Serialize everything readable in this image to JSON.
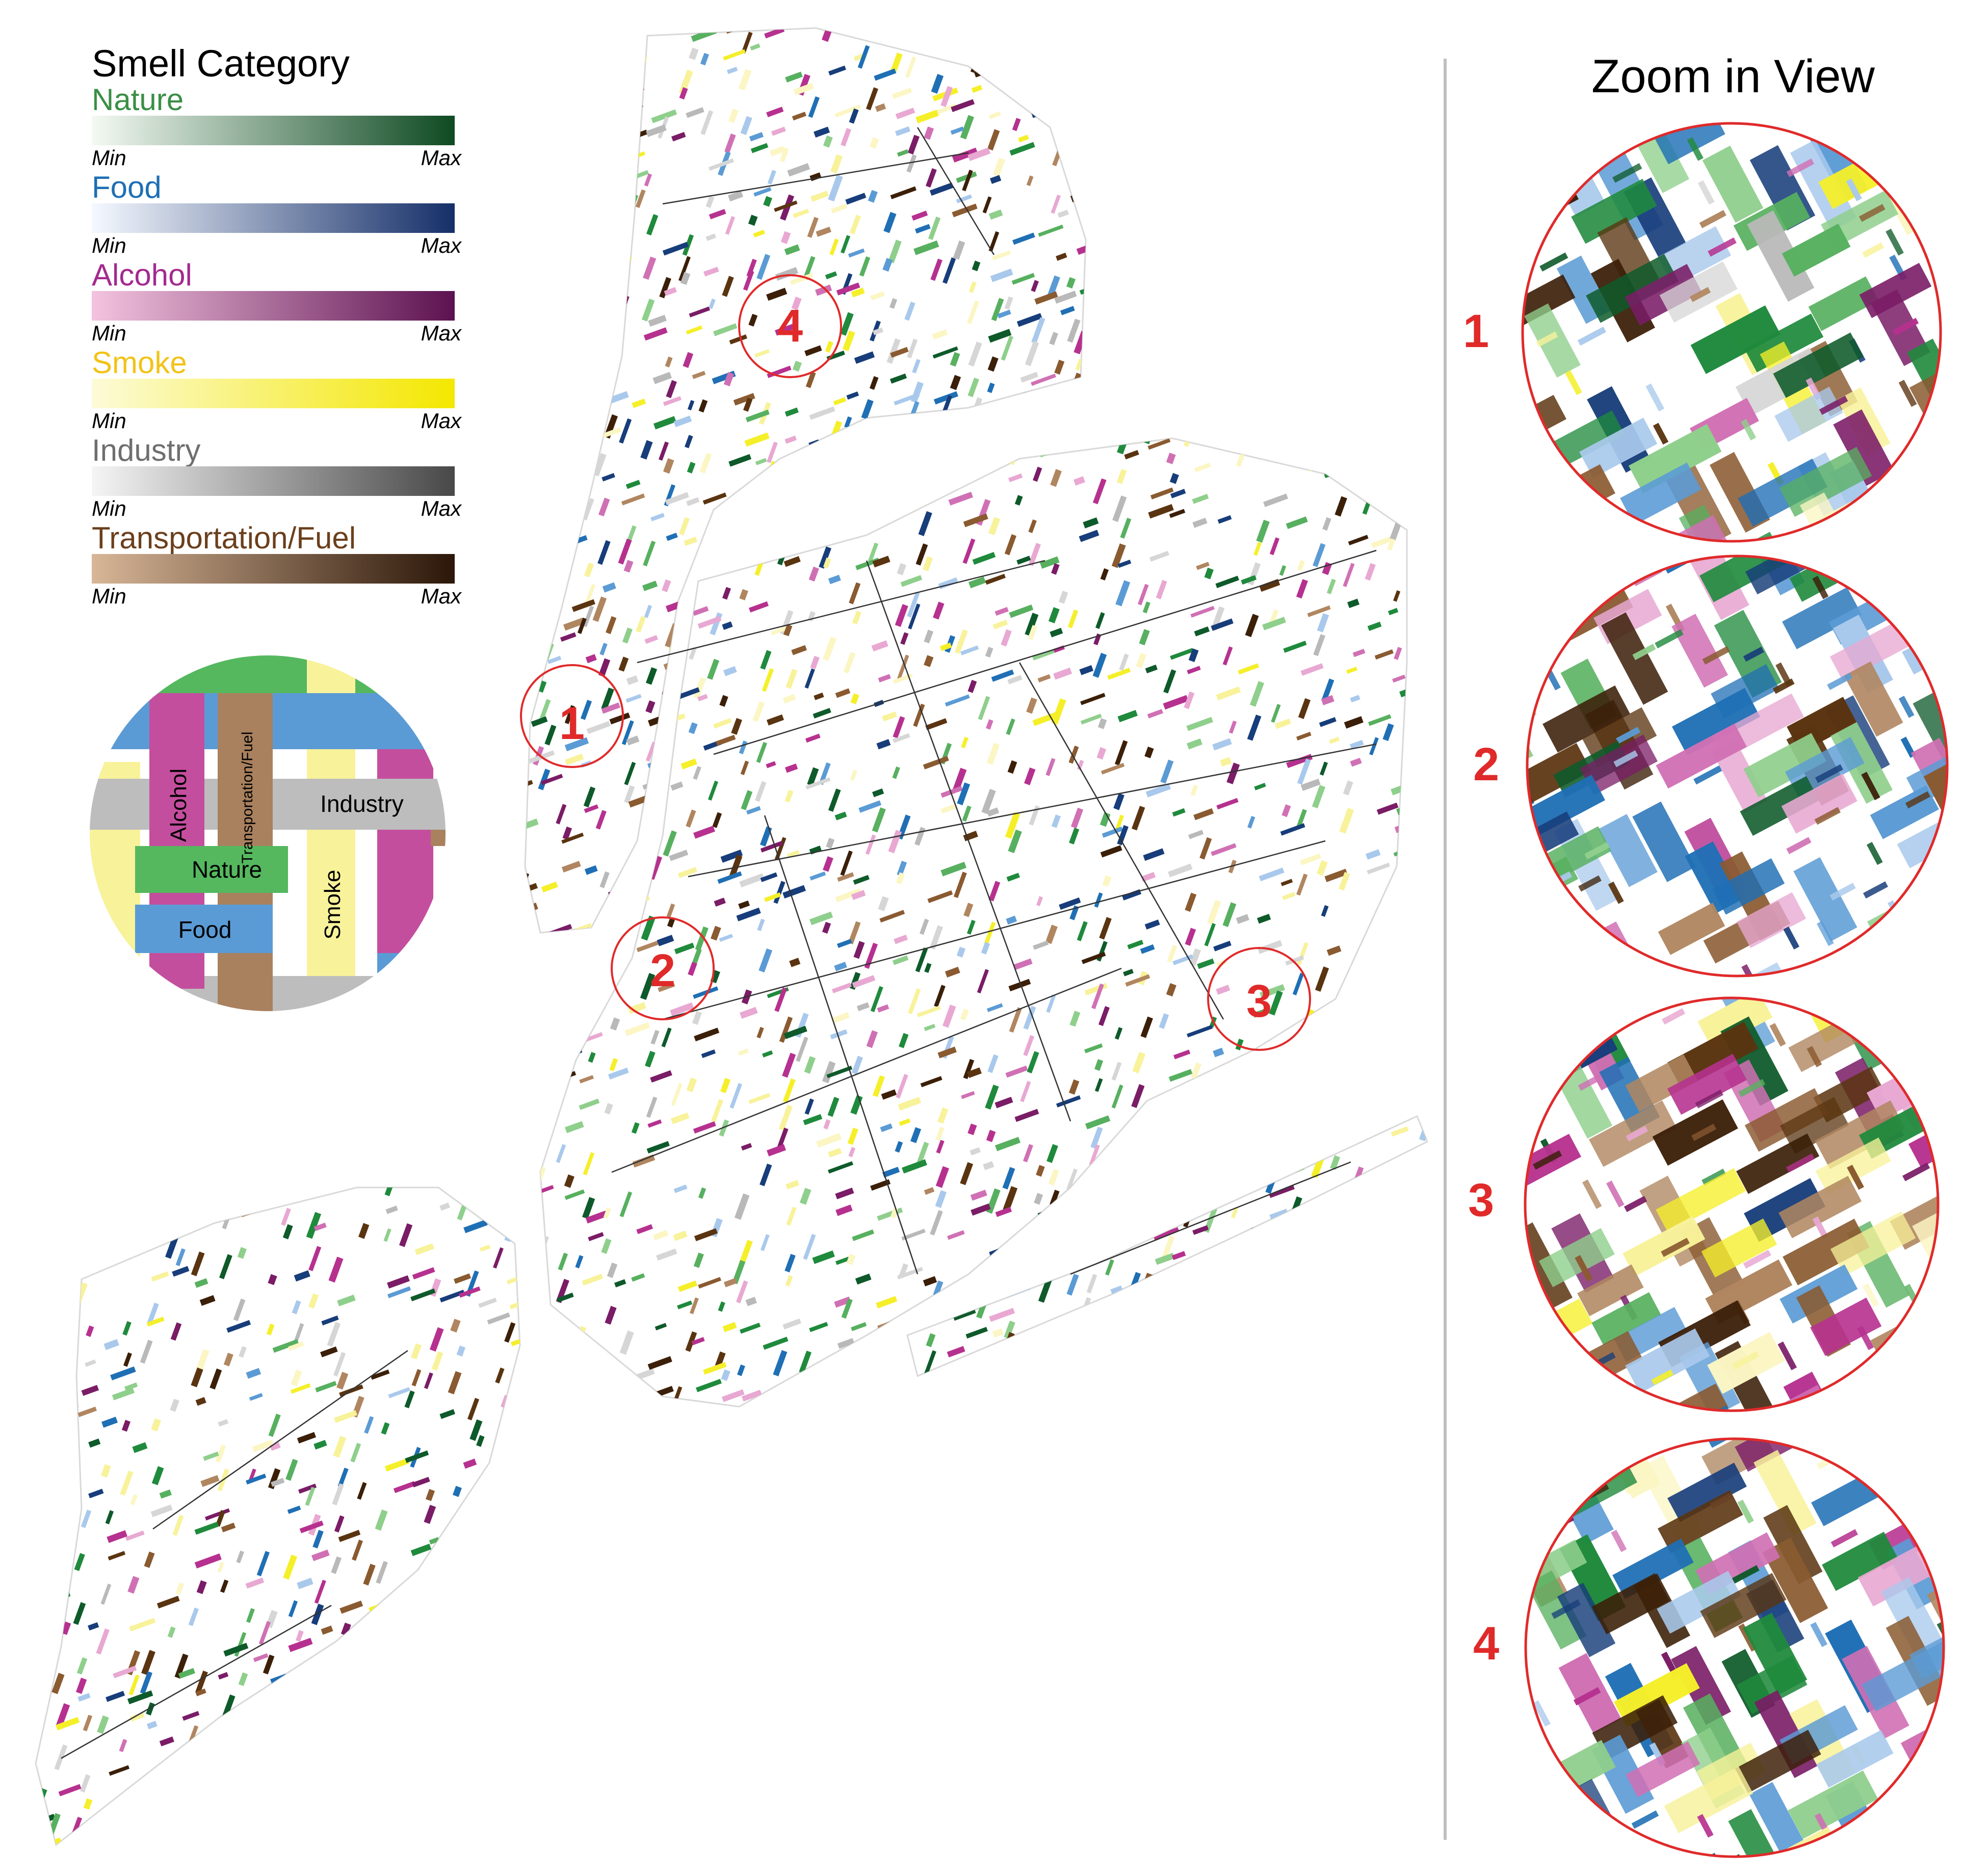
{
  "legend": {
    "title": "Smell Category",
    "categories": [
      {
        "name": "Nature",
        "label_color": "#3a8f45",
        "ramp": [
          "#f4faf3",
          "#0e4a22"
        ],
        "min": "Min",
        "max": "Max"
      },
      {
        "name": "Food",
        "label_color": "#1e6fb5",
        "ramp": [
          "#f5f9ff",
          "#152f68"
        ],
        "min": "Min",
        "max": "Max"
      },
      {
        "name": "Alcohol",
        "label_color": "#a3298f",
        "ramp": [
          "#f3c3df",
          "#5c1250"
        ],
        "min": "Min",
        "max": "Max"
      },
      {
        "name": "Smoke",
        "label_color": "#f2c318",
        "ramp": [
          "#fcfbd8",
          "#f4e700"
        ],
        "min": "Min",
        "max": "Max"
      },
      {
        "name": "Industry",
        "label_color": "#6e6e6e",
        "ramp": [
          "#f5f5f5",
          "#484848"
        ],
        "min": "Min",
        "max": "Max"
      },
      {
        "name": "Transportation/Fuel",
        "label_color": "#6b3f1c",
        "ramp": [
          "#d8b697",
          "#2b1608"
        ],
        "min": "Min",
        "max": "Max"
      }
    ]
  },
  "weave_key": {
    "labels": {
      "alcohol": "Alcohol",
      "transportation": "Transportation/Fuel",
      "industry": "Industry",
      "nature": "Nature",
      "smoke": "Smoke",
      "food": "Food"
    }
  },
  "map": {
    "highlight_color": "#e02a2a",
    "markers": [
      "1",
      "2",
      "3",
      "4"
    ]
  },
  "zoom_panel": {
    "title": "Zoom in View",
    "views": [
      {
        "number": "1"
      },
      {
        "number": "2"
      },
      {
        "number": "3"
      },
      {
        "number": "4"
      }
    ]
  },
  "palette": {
    "nature": [
      "#1f8a3c",
      "#57b05f",
      "#8fcf8c",
      "#0e5a2a"
    ],
    "food": [
      "#1f6fb5",
      "#5b9bd5",
      "#a9c9ec",
      "#173d7a"
    ],
    "alcohol": [
      "#b6318f",
      "#d070b4",
      "#e8a8d2",
      "#7a1c66"
    ],
    "smoke": [
      "#f5ef2a",
      "#f8f29a",
      "#fbf6c3"
    ],
    "industry": [
      "#b9b9b9",
      "#d6d6d6"
    ],
    "transport": [
      "#5a3410",
      "#8a5a30",
      "#b08660",
      "#3b1f08"
    ]
  }
}
